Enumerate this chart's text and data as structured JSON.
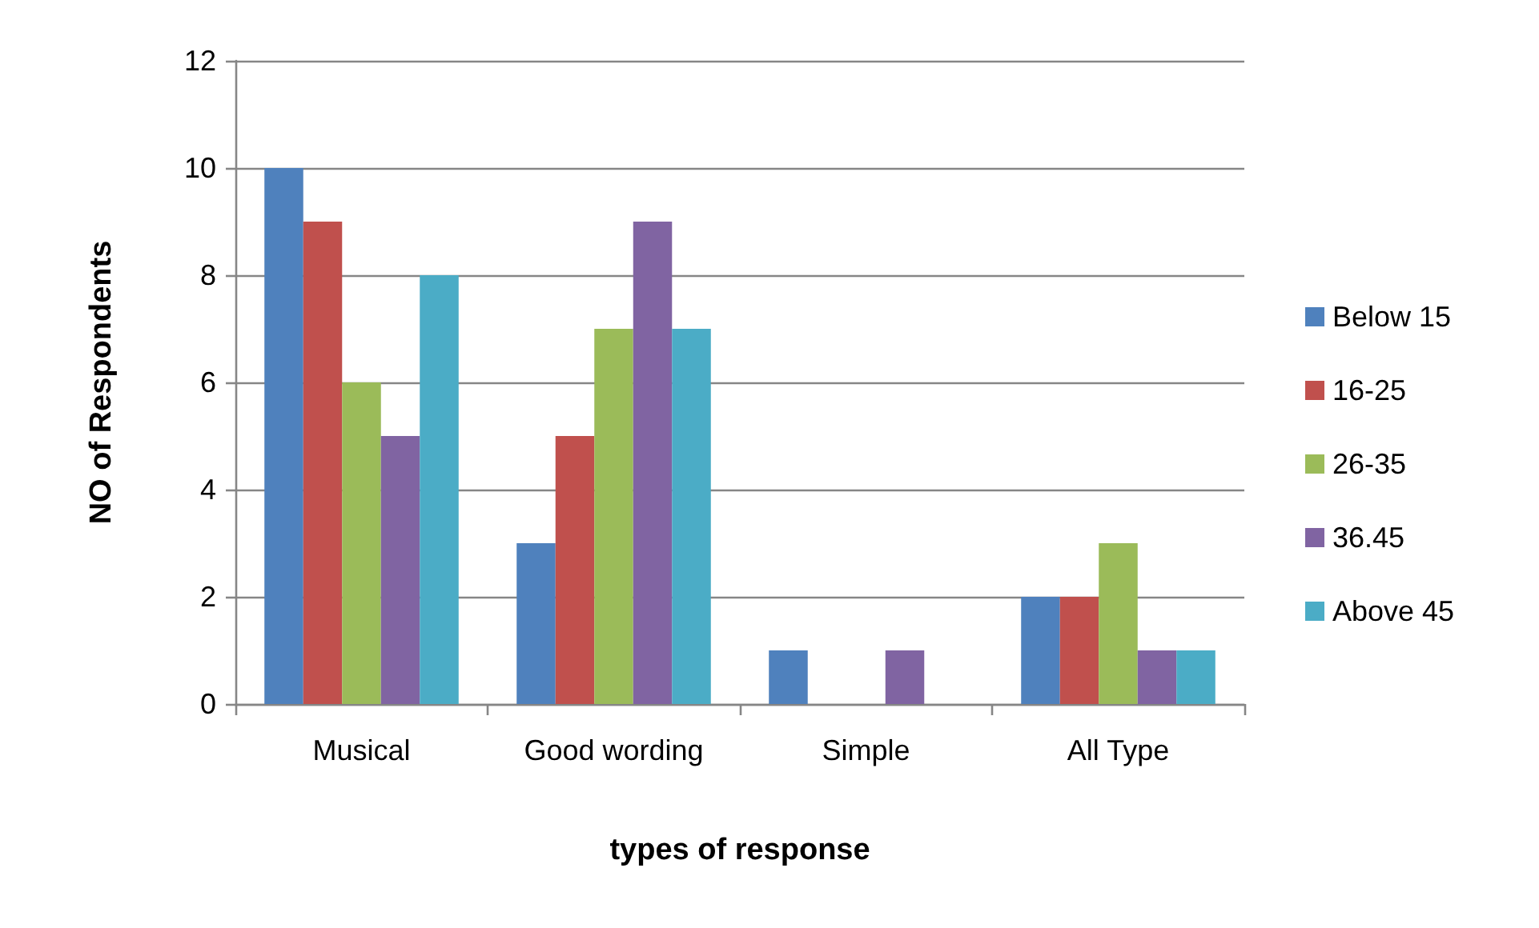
{
  "chart_data": {
    "type": "bar",
    "xlabel": "types of response",
    "ylabel": "NO of Respondents",
    "categories": [
      "Musical",
      "Good wording",
      "Simple",
      "All Type"
    ],
    "series": [
      {
        "name": "Below 15",
        "color": "#4f81bd",
        "values": [
          10,
          3,
          1,
          2
        ]
      },
      {
        "name": "16-25",
        "color": "#c0504d",
        "values": [
          9,
          5,
          0,
          2
        ]
      },
      {
        "name": "26-35",
        "color": "#9bbb59",
        "values": [
          6,
          7,
          0,
          3
        ]
      },
      {
        "name": "36.45",
        "color": "#8064a2",
        "values": [
          5,
          9,
          1,
          1
        ]
      },
      {
        "name": "Above 45",
        "color": "#4bacc6",
        "values": [
          8,
          7,
          0,
          1
        ]
      }
    ],
    "ylim": [
      0,
      12
    ],
    "yticks": [
      0,
      2,
      4,
      6,
      8,
      10,
      12
    ],
    "grid": "y",
    "legend": "right"
  }
}
